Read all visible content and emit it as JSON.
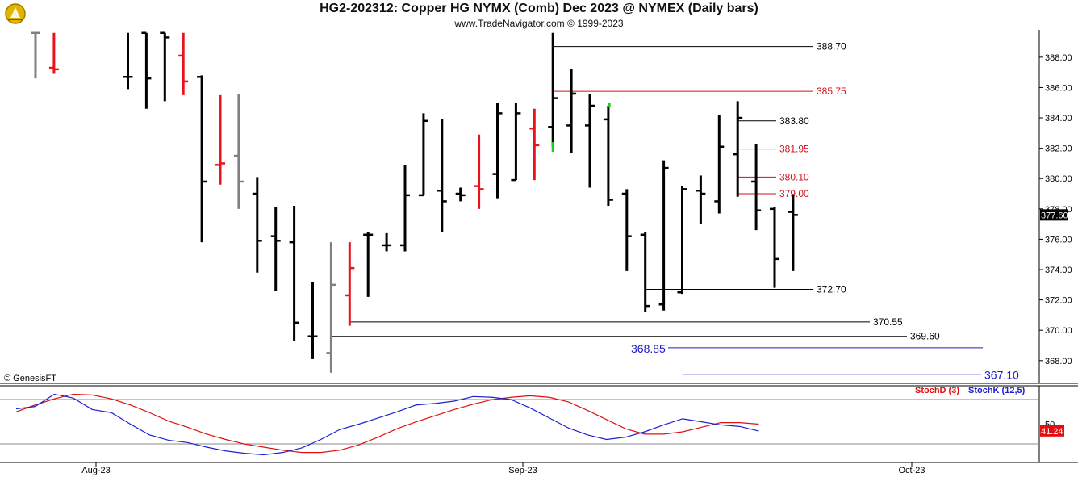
{
  "header": {
    "title": "HG2-202312:  Copper HG NYMX (Comb) Dec 2023 @ NYMEX  (Daily bars)",
    "subtitle": "www.TradeNavigator.com © 1999-2023",
    "watermark": "© GenesisFT"
  },
  "colors": {
    "up_bar": "#000000",
    "down_bar": "#e8141c",
    "neutral_bar": "#808080",
    "green_bar": "#22cc22",
    "level_black": "#000000",
    "level_red": "#d01018",
    "level_blue": "#1a1acc",
    "stoch_d": "#e01010",
    "stoch_k": "#2020d0"
  },
  "chart_data": [
    {
      "type": "ohlc",
      "panel": "price",
      "ylim": [
        366.5,
        389.8
      ],
      "y_ticks": [
        "388.00",
        "386.00",
        "384.00",
        "382.00",
        "380.00",
        "378.00",
        "376.00",
        "374.00",
        "372.00",
        "370.00",
        "368.00"
      ],
      "last_price": "377.60",
      "x_ticks": [
        "Aug-23",
        "Sep-23",
        "Oct-23"
      ],
      "bars": [
        {
          "i": 1,
          "high": 389.6,
          "low": 386.6,
          "open": 389.6,
          "close": 389.6,
          "color": "neutral"
        },
        {
          "i": 2,
          "high": 389.6,
          "low": 386.9,
          "open": 387.3,
          "close": 387.2,
          "color": "down"
        },
        {
          "i": 6,
          "high": 389.6,
          "low": 385.9,
          "open": 386.7,
          "close": 386.7,
          "color": "up"
        },
        {
          "i": 7,
          "high": 389.6,
          "low": 384.6,
          "open": 389.6,
          "close": 386.6,
          "color": "up"
        },
        {
          "i": 8,
          "high": 389.6,
          "low": 385.1,
          "open": 389.6,
          "close": 389.3,
          "color": "up"
        },
        {
          "i": 9,
          "high": 389.6,
          "low": 385.5,
          "open": 388.1,
          "close": 386.4,
          "color": "down"
        },
        {
          "i": 10,
          "high": 386.8,
          "low": 375.8,
          "open": 386.7,
          "close": 379.8,
          "color": "up"
        },
        {
          "i": 11,
          "high": 385.5,
          "low": 379.6,
          "open": 380.9,
          "close": 381.0,
          "color": "down"
        },
        {
          "i": 12,
          "high": 385.6,
          "low": 378.0,
          "open": 381.5,
          "close": 379.8,
          "color": "neutral"
        },
        {
          "i": 13,
          "high": 380.1,
          "low": 373.8,
          "open": 379.0,
          "close": 375.9,
          "color": "up"
        },
        {
          "i": 14,
          "high": 378.1,
          "low": 372.6,
          "open": 376.2,
          "close": 375.9,
          "color": "up"
        },
        {
          "i": 15,
          "high": 378.2,
          "low": 369.3,
          "open": 375.8,
          "close": 370.5,
          "color": "up"
        },
        {
          "i": 16,
          "high": 373.2,
          "low": 368.1,
          "open": 369.6,
          "close": 369.6,
          "color": "up"
        },
        {
          "i": 17,
          "high": 375.8,
          "low": 367.2,
          "open": 368.5,
          "close": 373.0,
          "color": "neutral"
        },
        {
          "i": 18,
          "high": 375.8,
          "low": 370.3,
          "open": 372.3,
          "close": 374.1,
          "color": "down"
        },
        {
          "i": 19,
          "high": 376.5,
          "low": 372.2,
          "open": 376.3,
          "close": 376.3,
          "color": "up"
        },
        {
          "i": 20,
          "high": 376.4,
          "low": 375.2,
          "open": 375.6,
          "close": 375.6,
          "color": "up"
        },
        {
          "i": 21,
          "high": 380.9,
          "low": 375.2,
          "open": 375.6,
          "close": 378.9,
          "color": "up"
        },
        {
          "i": 22,
          "high": 384.3,
          "low": 378.9,
          "open": 378.9,
          "close": 383.8,
          "color": "up"
        },
        {
          "i": 23,
          "high": 383.9,
          "low": 376.5,
          "open": 379.2,
          "close": 378.5,
          "color": "up"
        },
        {
          "i": 24,
          "high": 379.4,
          "low": 378.5,
          "open": 379.0,
          "close": 378.9,
          "color": "up"
        },
        {
          "i": 25,
          "high": 382.9,
          "low": 378.0,
          "open": 379.5,
          "close": 379.3,
          "color": "down"
        },
        {
          "i": 26,
          "high": 385.0,
          "low": 378.7,
          "open": 380.3,
          "close": 384.3,
          "color": "up"
        },
        {
          "i": 27,
          "high": 385.0,
          "low": 379.9,
          "open": 379.9,
          "close": 384.3,
          "color": "up"
        },
        {
          "i": 28,
          "high": 384.6,
          "low": 379.9,
          "open": 383.3,
          "close": 382.2,
          "color": "down"
        },
        {
          "i": 29,
          "high": 389.6,
          "low": 382.1,
          "open": 383.4,
          "close": 385.3,
          "color": "up"
        },
        {
          "i": 30,
          "high": 387.2,
          "low": 381.7,
          "open": 383.5,
          "close": 385.6,
          "color": "up"
        },
        {
          "i": 31,
          "high": 385.6,
          "low": 379.4,
          "open": 383.5,
          "close": 384.8,
          "color": "up"
        },
        {
          "i": 32,
          "high": 384.8,
          "low": 378.2,
          "open": 383.9,
          "close": 378.6,
          "color": "up"
        },
        {
          "i": 33,
          "high": 379.3,
          "low": 373.9,
          "open": 379.0,
          "close": 376.2,
          "color": "up"
        },
        {
          "i": 34,
          "high": 376.5,
          "low": 371.2,
          "open": 376.3,
          "close": 371.6,
          "color": "up"
        },
        {
          "i": 35,
          "high": 381.2,
          "low": 371.3,
          "open": 371.7,
          "close": 380.7,
          "color": "up"
        },
        {
          "i": 36,
          "high": 379.5,
          "low": 372.4,
          "open": 372.5,
          "close": 379.3,
          "color": "up"
        },
        {
          "i": 37,
          "high": 380.2,
          "low": 377.0,
          "open": 379.2,
          "close": 379.0,
          "color": "up"
        },
        {
          "i": 38,
          "high": 384.2,
          "low": 377.7,
          "open": 378.5,
          "close": 382.1,
          "color": "up"
        },
        {
          "i": 39,
          "high": 385.1,
          "low": 378.8,
          "open": 381.6,
          "close": 384.0,
          "color": "up"
        },
        {
          "i": 40,
          "high": 382.3,
          "low": 376.6,
          "open": 379.8,
          "close": 377.9,
          "color": "up"
        },
        {
          "i": 41,
          "high": 378.1,
          "low": 372.8,
          "open": 378.0,
          "close": 374.7,
          "color": "up"
        },
        {
          "i": 42,
          "high": 378.9,
          "low": 373.9,
          "open": 377.8,
          "close": 377.6,
          "color": "up"
        }
      ],
      "green_tick": {
        "i": 29,
        "value": 382.4
      },
      "levels": [
        {
          "value": 388.7,
          "label": "388.70",
          "color": "black",
          "from_bar": 29,
          "label_side": "right"
        },
        {
          "value": 385.75,
          "label": "385.75",
          "color": "red",
          "from_bar": 29,
          "label_side": "right"
        },
        {
          "value": 383.8,
          "label": "383.80",
          "color": "black",
          "from_bar": 39,
          "label_side": "right"
        },
        {
          "value": 381.95,
          "label": "381.95",
          "color": "red",
          "from_bar": 39,
          "label_side": "right"
        },
        {
          "value": 380.1,
          "label": "380.10",
          "color": "red",
          "from_bar": 39,
          "label_side": "right"
        },
        {
          "value": 379.0,
          "label": "379.00",
          "color": "red",
          "from_bar": 39,
          "label_side": "right"
        },
        {
          "value": 372.7,
          "label": "372.70",
          "color": "black",
          "from_bar": 34,
          "label_side": "right"
        },
        {
          "value": 370.55,
          "label": "370.55",
          "color": "black",
          "from_bar": 18,
          "label_side": "right"
        },
        {
          "value": 369.6,
          "label": "369.60",
          "color": "black",
          "from_bar": 17,
          "label_side": "right"
        },
        {
          "value": 368.85,
          "label": "368.85",
          "color": "blue",
          "from_bar": 36,
          "label_side": "left"
        },
        {
          "value": 367.1,
          "label": "367.10",
          "color": "blue",
          "from_bar": 36,
          "label_side": "right"
        }
      ]
    },
    {
      "type": "line",
      "panel": "stochastic",
      "ylim": [
        0,
        100
      ],
      "y_ticks": [
        "50"
      ],
      "last_value": "41.24",
      "series": [
        {
          "name": "StochD (3)",
          "key": "d",
          "values": [
            66,
            75,
            83,
            89,
            88,
            83,
            75,
            65,
            54,
            46,
            37,
            30,
            24,
            20,
            16,
            13,
            13,
            16,
            23,
            33,
            44,
            53,
            61,
            69,
            76,
            82,
            85,
            87,
            85,
            79,
            68,
            56,
            44,
            37,
            37,
            40,
            46,
            52,
            52,
            50
          ]
        },
        {
          "name": "StochK (12,5)",
          "key": "k",
          "values": [
            70,
            73,
            89,
            84,
            69,
            65,
            50,
            36,
            29,
            26,
            20,
            15,
            12,
            10,
            13,
            19,
            30,
            43,
            50,
            58,
            66,
            75,
            77,
            80,
            86,
            85,
            82,
            71,
            58,
            45,
            36,
            30,
            33,
            40,
            49,
            57,
            53,
            49,
            47,
            41
          ]
        }
      ],
      "k_label": "StochK (12,5)",
      "d_label": "StochD (3)"
    }
  ]
}
